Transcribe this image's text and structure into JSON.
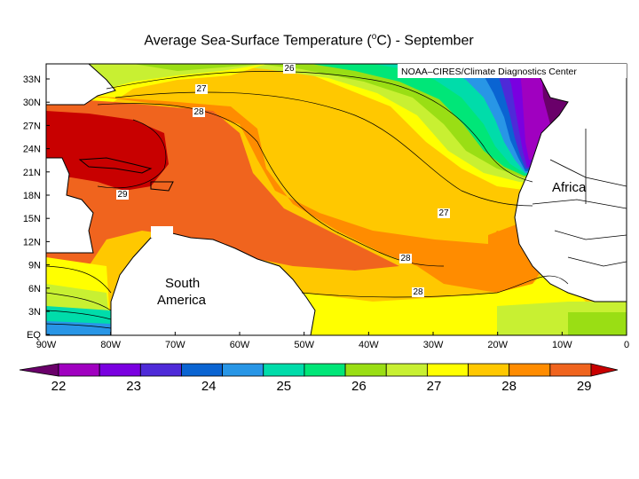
{
  "title": {
    "prefix": "Average Sea-Surface Temperature (",
    "sup": "o",
    "suffix": "C) - September"
  },
  "credit": "NOAA–CIRES/Climate Diagnostics Center",
  "regions": {
    "africa": "Africa",
    "south_america_1": "South",
    "south_america_2": "America"
  },
  "lat_ticks": [
    "33N",
    "30N",
    "27N",
    "24N",
    "21N",
    "18N",
    "15N",
    "12N",
    "9N",
    "6N",
    "3N",
    "EQ"
  ],
  "lon_ticks": [
    "90W",
    "80W",
    "70W",
    "60W",
    "50W",
    "40W",
    "30W",
    "20W",
    "10W",
    "0"
  ],
  "contour_labels": [
    "26",
    "27",
    "28",
    "29",
    "27",
    "28",
    "28"
  ],
  "colorbar": {
    "labels": [
      "22",
      "23",
      "24",
      "25",
      "26",
      "27",
      "28",
      "29"
    ],
    "colors": [
      "#6a006a",
      "#a000c0",
      "#7a00e0",
      "#4e2ad8",
      "#0a64d2",
      "#2896e6",
      "#00dcaa",
      "#00e678",
      "#9ade14",
      "#c8f032",
      "#ffff00",
      "#ffc800",
      "#ff8c00",
      "#f0641e",
      "#c80000"
    ]
  }
}
